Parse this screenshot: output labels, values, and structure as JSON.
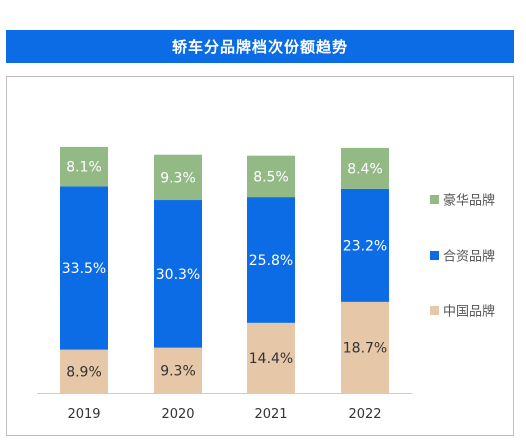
{
  "title": "轿车分品牌档次份额趋势",
  "colors": {
    "banner": "#0c6ce6",
    "luxury": "#93b985",
    "joint": "#0c6ce6",
    "chinese": "#e6c8a8",
    "axis": "#cccccc"
  },
  "chart_data": {
    "type": "bar",
    "stacked": true,
    "categories": [
      "2019",
      "2020",
      "2021",
      "2022"
    ],
    "series": [
      {
        "name": "中国品牌",
        "values": [
          8.9,
          9.3,
          14.4,
          18.7
        ],
        "labels": [
          "8.9%",
          "9.3%",
          "14.4%",
          "18.7%"
        ]
      },
      {
        "name": "合资品牌",
        "values": [
          33.5,
          30.3,
          25.8,
          23.2
        ],
        "labels": [
          "33.5%",
          "30.3%",
          "25.8%",
          "23.2%"
        ]
      },
      {
        "name": "豪华品牌",
        "values": [
          8.1,
          9.3,
          8.5,
          8.4
        ],
        "labels": [
          "8.1%",
          "9.3%",
          "8.5%",
          "8.4%"
        ]
      }
    ],
    "legend": {
      "position": "right",
      "items": [
        "豪华品牌",
        "合资品牌",
        "中国品牌"
      ]
    },
    "grid": false
  }
}
